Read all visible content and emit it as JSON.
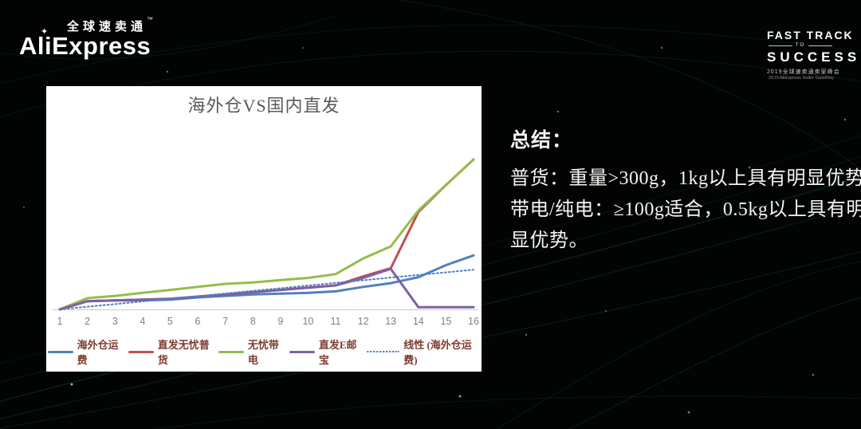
{
  "logos": {
    "aliexpress": {
      "chinese": "全球速卖通",
      "tm": "™",
      "latin": "AliExpress",
      "sparkle_icon": "✦"
    },
    "fast_track": {
      "line1": "FAST TRACK",
      "to": "TO",
      "line2": "SUCCESS",
      "sub_cn": "2019全球速卖通卖家峰会",
      "sub_en": "2019 AliExpress Seller GalaWay"
    }
  },
  "summary": {
    "heading": "总结：",
    "lines": [
      "普货：重量>300g，1kg以上具有明显优势。",
      "带电/纯电：≥100g适合，0.5kg以上具有明",
      "显优势。"
    ]
  },
  "chart_data": {
    "type": "line",
    "title": "海外仓VS国内直发",
    "xlabel": "",
    "ylabel": "",
    "categories": [
      "1",
      "2",
      "3",
      "4",
      "5",
      "6",
      "7",
      "8",
      "9",
      "10",
      "11",
      "12",
      "13",
      "14",
      "15",
      "16"
    ],
    "ylim": [
      0,
      105
    ],
    "grid": false,
    "legend_position": "bottom",
    "y_axis_shown": false,
    "series": [
      {
        "name": "海外仓运费",
        "color": "#4F81BD",
        "style": "solid",
        "values": [
          0,
          5.5,
          6,
          6,
          6.5,
          8,
          9,
          10,
          10.5,
          11,
          12,
          15,
          17.5,
          21.5,
          29.5,
          36
        ]
      },
      {
        "name": "直发无忧普货",
        "color": "#C0504D",
        "style": "solid",
        "values": [
          0,
          5.5,
          6,
          6.5,
          7,
          8.5,
          10,
          11.5,
          13,
          14.5,
          16,
          22,
          27.5,
          65,
          83,
          100
        ]
      },
      {
        "name": "无忧带电",
        "color": "#94BD4A",
        "style": "solid",
        "values": [
          0,
          7.5,
          9,
          11,
          13,
          15,
          17,
          18,
          19.5,
          21,
          23.5,
          34,
          42,
          66,
          83,
          100
        ]
      },
      {
        "name": "直发E邮宝",
        "color": "#7D60A5",
        "style": "solid",
        "values": [
          0,
          5.5,
          6,
          6.5,
          7,
          8.5,
          10,
          11.5,
          13,
          14.5,
          16,
          21,
          27,
          1.5,
          1.5,
          1.5
        ]
      },
      {
        "name": "线性 (海外仓运费)",
        "color": "#4F81BD",
        "style": "dotted",
        "values": [
          0,
          1.8,
          3.5,
          5.3,
          7.1,
          8.8,
          10.6,
          12.4,
          14.1,
          15.9,
          17.7,
          19.4,
          21.2,
          23,
          24.7,
          26.5
        ]
      }
    ]
  },
  "colors": {
    "background": "#020404",
    "panel": "#ffffff",
    "title_text": "#595959",
    "axis_text": "#7F7F7F",
    "axis_line": "#C9C9C9",
    "legend_text": "#7E3B30",
    "summary_text": "#F5F4F0"
  }
}
